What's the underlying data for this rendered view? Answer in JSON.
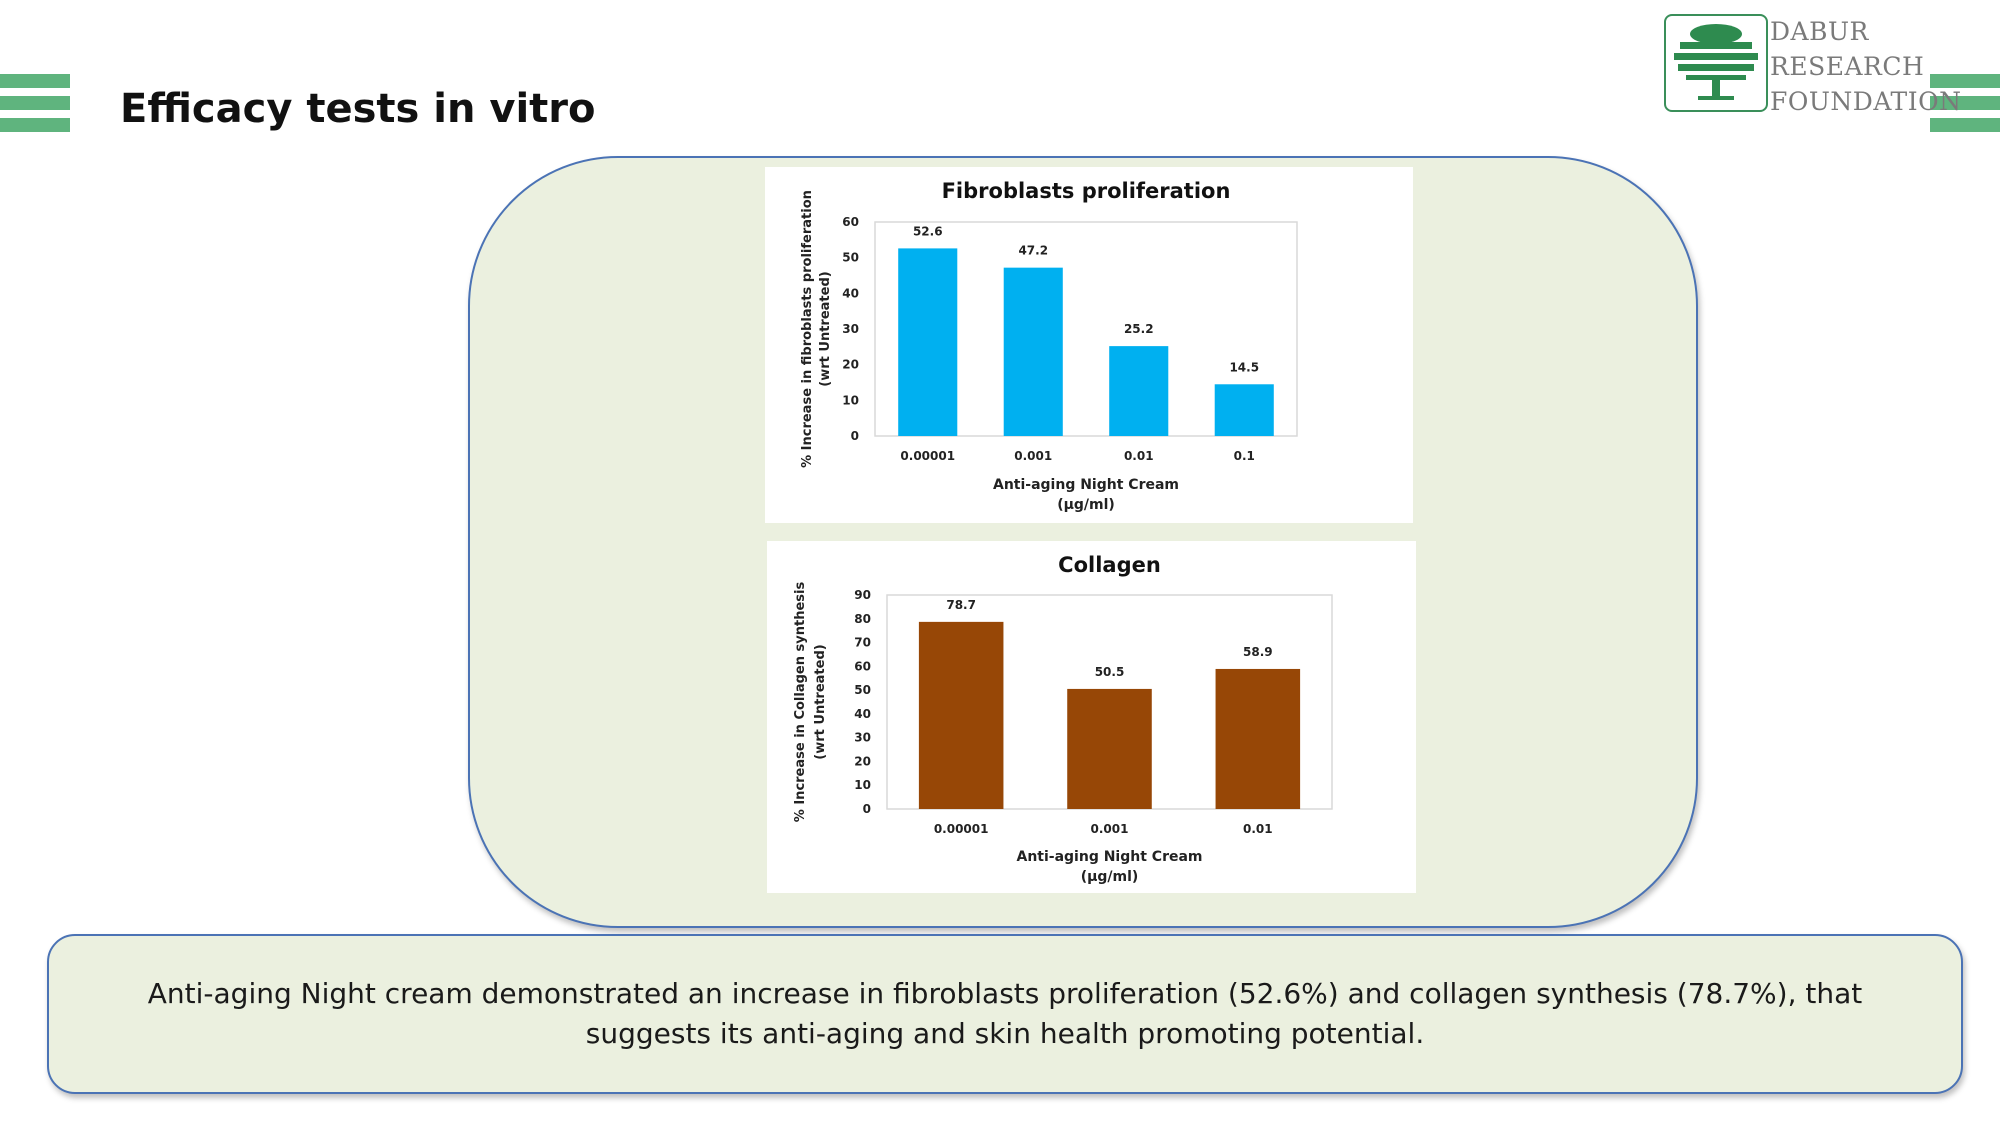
{
  "slide": {
    "title": "Efficacy tests in vitro",
    "summary": "Anti-aging Night cream demonstrated an increase in fibroblasts proliferation (52.6%) and collagen synthesis (78.7%), that suggests its anti-aging and skin health promoting potential."
  },
  "logo": {
    "lines": [
      "DABUR",
      "RESEARCH",
      "FOUNDATION"
    ],
    "icon": "tree-icon"
  },
  "colors": {
    "deco_green": "#5fb47e",
    "panel_bg": "#ebf0df",
    "panel_border": "#4b73b5",
    "fibroblast_bar": "#00b0f0",
    "collagen_bar": "#974706"
  },
  "chart_data": [
    {
      "type": "bar",
      "title": "Fibroblasts proliferation",
      "categories": [
        "0.00001",
        "0.001",
        "0.01",
        "0.1"
      ],
      "values": [
        52.6,
        47.2,
        25.2,
        14.5
      ],
      "ylabel_lines": [
        "% Increase in fibroblasts proliferation",
        "(wrt Untreated)"
      ],
      "xlabel_lines": [
        "Anti-aging Night Cream",
        "(µg/ml)"
      ],
      "ylim": [
        0,
        60
      ],
      "yticks": [
        0,
        10,
        20,
        30,
        40,
        50,
        60
      ],
      "data_labels": [
        "52.6",
        "47.2",
        "25.2",
        "14.5"
      ],
      "color": "#00b0f0",
      "grid": false
    },
    {
      "type": "bar",
      "title": "Collagen",
      "categories": [
        "0.00001",
        "0.001",
        "0.01"
      ],
      "values": [
        78.7,
        50.5,
        58.9
      ],
      "ylabel_lines": [
        "% Increase in Collagen synthesis",
        "(wrt Untreated)"
      ],
      "xlabel_lines": [
        "Anti-aging Night Cream",
        "(µg/ml)"
      ],
      "ylim": [
        0,
        90
      ],
      "yticks": [
        0,
        10,
        20,
        30,
        40,
        50,
        60,
        70,
        80,
        90
      ],
      "data_labels": [
        "78.7",
        "50.5",
        "58.9"
      ],
      "color": "#974706",
      "grid": false
    }
  ]
}
